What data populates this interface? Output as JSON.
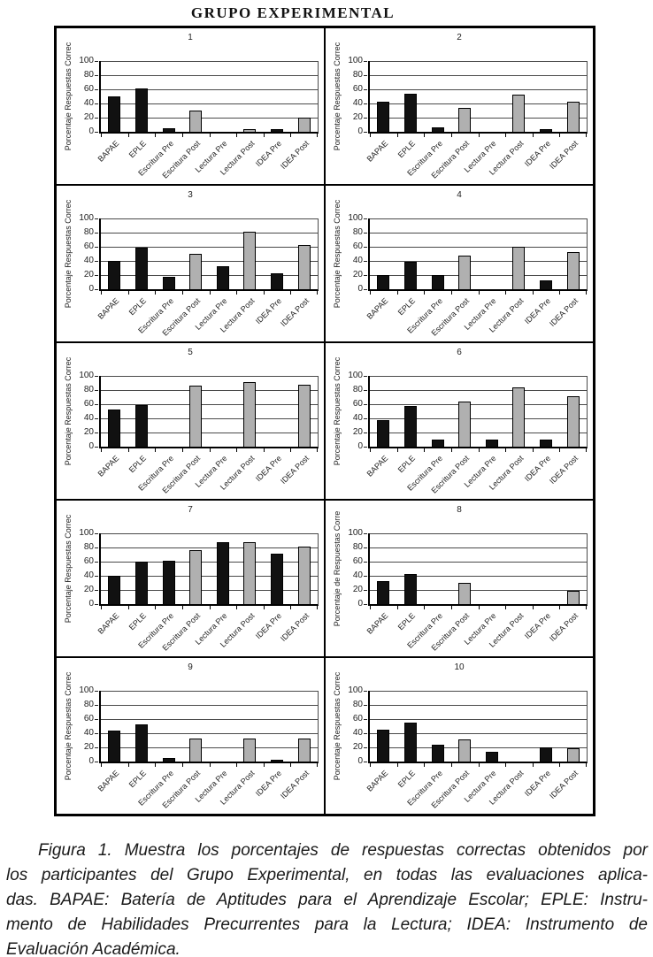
{
  "figure": {
    "caption_lines": [
      "Figura 1. Muestra los porcentajes de respuestas correctas obtenidos por",
      "los participantes del Grupo Experimental, en todas las evaluaciones aplica-",
      "das. BAPAE: Batería de Aptitudes para el Aprendizaje Escolar; EPLE: Instru-",
      "mento de Habilidades Precurrentes para la Lectura; IDEA: Instrumento de",
      "Evaluación Académica."
    ]
  },
  "chart_data": {
    "type": "bar",
    "suptitle": "GRUPO EXPERIMENTAL",
    "layout": "5x2 grid of small multiples, one panel per participant",
    "categories": [
      "BAPAE",
      "EPLE",
      "Escritura Pre",
      "Escritura Post",
      "Lectura Pre",
      "Lectura Post",
      "IDEA Pre",
      "IDEA Post"
    ],
    "category_colors": [
      "black",
      "black",
      "black",
      "gray",
      "black",
      "gray",
      "black",
      "gray"
    ],
    "colors": {
      "black": "#111111",
      "gray": "#b0b0b0"
    },
    "ylim": [
      0,
      100
    ],
    "yticks": [
      0,
      20,
      40,
      60,
      80,
      100
    ],
    "grid": true,
    "legend_position": "none",
    "panels": [
      {
        "title": "1",
        "ylabel": "Porcentaje Respuestas Correc",
        "values": [
          50,
          61,
          5,
          30,
          0,
          4,
          4,
          20
        ]
      },
      {
        "title": "2",
        "ylabel": "Porcentaje Respuestas Correc",
        "values": [
          43,
          54,
          6,
          34,
          0,
          53,
          4,
          42
        ]
      },
      {
        "title": "3",
        "ylabel": "Porcentaje Respuestas Correc",
        "values": [
          40,
          59,
          18,
          50,
          32,
          81,
          23,
          62
        ]
      },
      {
        "title": "4",
        "ylabel": "Porcentaje Respuestas Correc",
        "values": [
          20,
          39,
          20,
          48,
          0,
          60,
          12,
          52
        ]
      },
      {
        "title": "5",
        "ylabel": "Porcentaje Respuestas Correc",
        "values": [
          53,
          59,
          0,
          86,
          0,
          91,
          0,
          88
        ]
      },
      {
        "title": "6",
        "ylabel": "Porcentaje Respuestas Correc",
        "values": [
          37,
          58,
          10,
          64,
          10,
          84,
          10,
          71
        ]
      },
      {
        "title": "7",
        "ylabel": "Porcentaje Respuestas Correc",
        "values": [
          40,
          60,
          61,
          76,
          88,
          88,
          71,
          81
        ]
      },
      {
        "title": "8",
        "ylabel": "Porcentaje de Respuestas Corre",
        "values": [
          33,
          43,
          0,
          30,
          0,
          0,
          0,
          19
        ]
      },
      {
        "title": "9",
        "ylabel": "Porcentaje Respuestas Correc",
        "values": [
          44,
          53,
          5,
          33,
          0,
          33,
          3,
          33
        ]
      },
      {
        "title": "10",
        "ylabel": "Porcentaje Respuestas Correc",
        "values": [
          45,
          55,
          24,
          31,
          14,
          0,
          20,
          19
        ]
      }
    ]
  }
}
